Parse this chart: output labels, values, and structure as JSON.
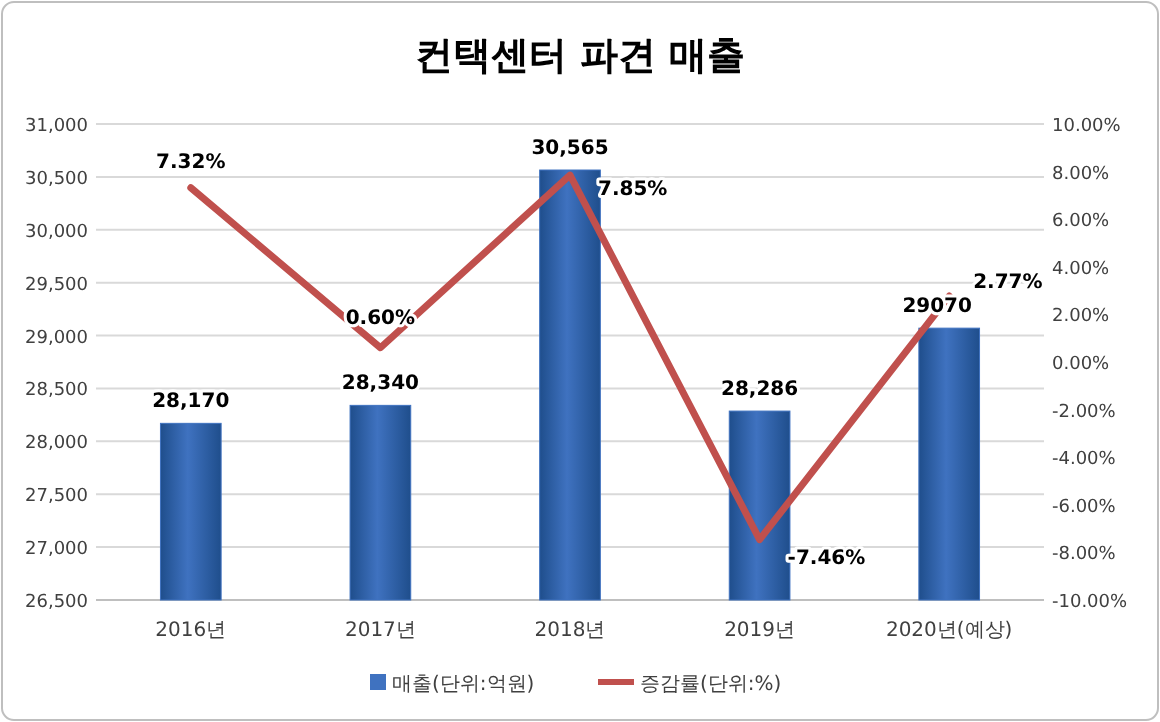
{
  "chart_data": {
    "type": "bar",
    "title": "컨택센터 파견 매출",
    "categories": [
      "2016년",
      "2017년",
      "2018년",
      "2019년",
      "2020년(예상)"
    ],
    "series": [
      {
        "name": "매출(단위:억원)",
        "color": "#3f72c0",
        "values": [
          28170,
          28340,
          30565,
          28286,
          29070
        ],
        "value_labels": [
          "28,170",
          "28,340",
          "30,565",
          "28,286",
          "29070"
        ]
      },
      {
        "name": "증감률(단위:%)",
        "type": "line",
        "axis": "y2",
        "color": "#c0504d",
        "values": [
          7.32,
          0.6,
          7.85,
          -7.46,
          2.77
        ],
        "value_labels": [
          "7.32%",
          "0.60%",
          "7.85%",
          "-7.46%",
          "2.77%"
        ]
      }
    ],
    "ylim": [
      26500,
      31000
    ],
    "yticks": [
      {
        "value": 26500,
        "label": "26,500"
      },
      {
        "value": 27000,
        "label": "27,000"
      },
      {
        "value": 27500,
        "label": "27,500"
      },
      {
        "value": 28000,
        "label": "28,000"
      },
      {
        "value": 28500,
        "label": "28,500"
      },
      {
        "value": 29000,
        "label": "29,000"
      },
      {
        "value": 29500,
        "label": "29,500"
      },
      {
        "value": 30000,
        "label": "30,000"
      },
      {
        "value": 30500,
        "label": "30,500"
      },
      {
        "value": 31000,
        "label": "31,000"
      }
    ],
    "y2lim": [
      -10,
      10
    ],
    "y2ticks": [
      {
        "value": -10,
        "label": "-10.00%"
      },
      {
        "value": -8,
        "label": "-8.00%"
      },
      {
        "value": -6,
        "label": "-6.00%"
      },
      {
        "value": -4,
        "label": "-4.00%"
      },
      {
        "value": -2,
        "label": "-2.00%"
      },
      {
        "value": 0,
        "label": "0.00%"
      },
      {
        "value": 2,
        "label": "2.00%"
      },
      {
        "value": 4,
        "label": "4.00%"
      },
      {
        "value": 6,
        "label": "6.00%"
      },
      {
        "value": 8,
        "label": "8.00%"
      },
      {
        "value": 10,
        "label": "10.00%"
      }
    ],
    "grid": "y",
    "legend": "bottom",
    "marker": "none",
    "line_style": "solid"
  }
}
